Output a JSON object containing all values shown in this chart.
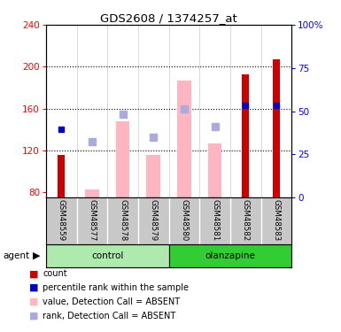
{
  "title": "GDS2608 / 1374257_at",
  "samples": [
    "GSM48559",
    "GSM48577",
    "GSM48578",
    "GSM48579",
    "GSM48580",
    "GSM48581",
    "GSM48582",
    "GSM48583"
  ],
  "count_values": [
    116,
    null,
    null,
    null,
    null,
    null,
    193,
    207
  ],
  "percentile_values": [
    140,
    null,
    null,
    null,
    null,
    null,
    163,
    163
  ],
  "absent_value_bars": [
    null,
    83,
    148,
    116,
    187,
    127,
    null,
    null
  ],
  "absent_rank_squares": [
    null,
    128,
    155,
    133,
    160,
    143,
    null,
    null
  ],
  "ylim_left": [
    75,
    240
  ],
  "ylim_right": [
    0,
    100
  ],
  "yticks_left": [
    80,
    120,
    160,
    200,
    240
  ],
  "yticks_right": [
    0,
    25,
    50,
    75,
    100
  ],
  "control_color_light": "#AEEAAE",
  "control_color": "#90EE90",
  "olanzapine_color": "#32CD32",
  "sample_bg_color": "#C8C8C8",
  "bar_color_count": "#CC0000",
  "bar_color_absent_value": "#FFB6C1",
  "square_color_percentile": "#0000CC",
  "square_color_absent_rank": "#AAAADD",
  "legend_labels": [
    "count",
    "percentile rank within the sample",
    "value, Detection Call = ABSENT",
    "rank, Detection Call = ABSENT"
  ],
  "legend_colors": [
    "#CC0000",
    "#0000CC",
    "#FFB6C1",
    "#AAAADD"
  ]
}
